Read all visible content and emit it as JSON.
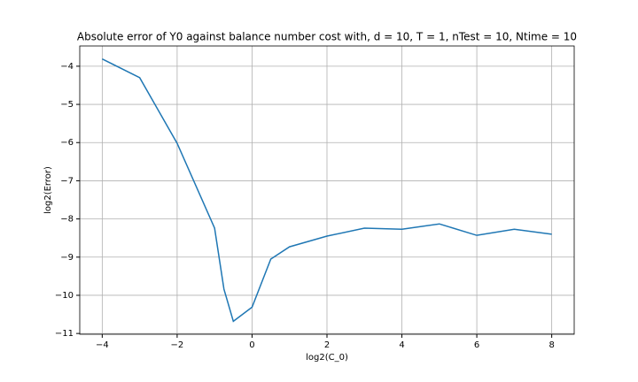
{
  "chart_data": {
    "type": "line",
    "title": "Absolute error of Y0 against balance number cost with, d = 10, T = 1, nTest = 10, Ntime = 10",
    "xlabel": "log2(C_0)",
    "ylabel": "log2(Error)",
    "x": [
      -4,
      -3,
      -2,
      -1,
      -0.75,
      -0.5,
      0,
      0.5,
      1,
      2,
      3,
      4,
      5,
      6,
      7,
      8
    ],
    "series": [
      {
        "name": "error",
        "color": "#1f77b4",
        "values": [
          -3.81,
          -4.3,
          -6.02,
          -8.24,
          -9.84,
          -10.68,
          -10.31,
          -9.05,
          -8.73,
          -8.45,
          -8.24,
          -8.27,
          -8.13,
          -8.43,
          -8.27,
          -8.4
        ]
      }
    ],
    "xlim": [
      -4.6,
      8.6
    ],
    "xticks": [
      {
        "value": -4,
        "label": "−4"
      },
      {
        "value": -2,
        "label": "−2"
      },
      0,
      2,
      4,
      6,
      8
    ],
    "ylim": [
      -11.02,
      -3.47
    ],
    "yticks": [
      {
        "value": -11,
        "label": "−11"
      },
      {
        "value": -10,
        "label": "−10"
      },
      {
        "value": -9,
        "label": "−9"
      },
      {
        "value": -8,
        "label": "−8"
      },
      {
        "value": -7,
        "label": "−7"
      },
      {
        "value": -6,
        "label": "−6"
      },
      {
        "value": -5,
        "label": "−5"
      },
      {
        "value": -4,
        "label": "−4"
      }
    ],
    "grid": true
  }
}
